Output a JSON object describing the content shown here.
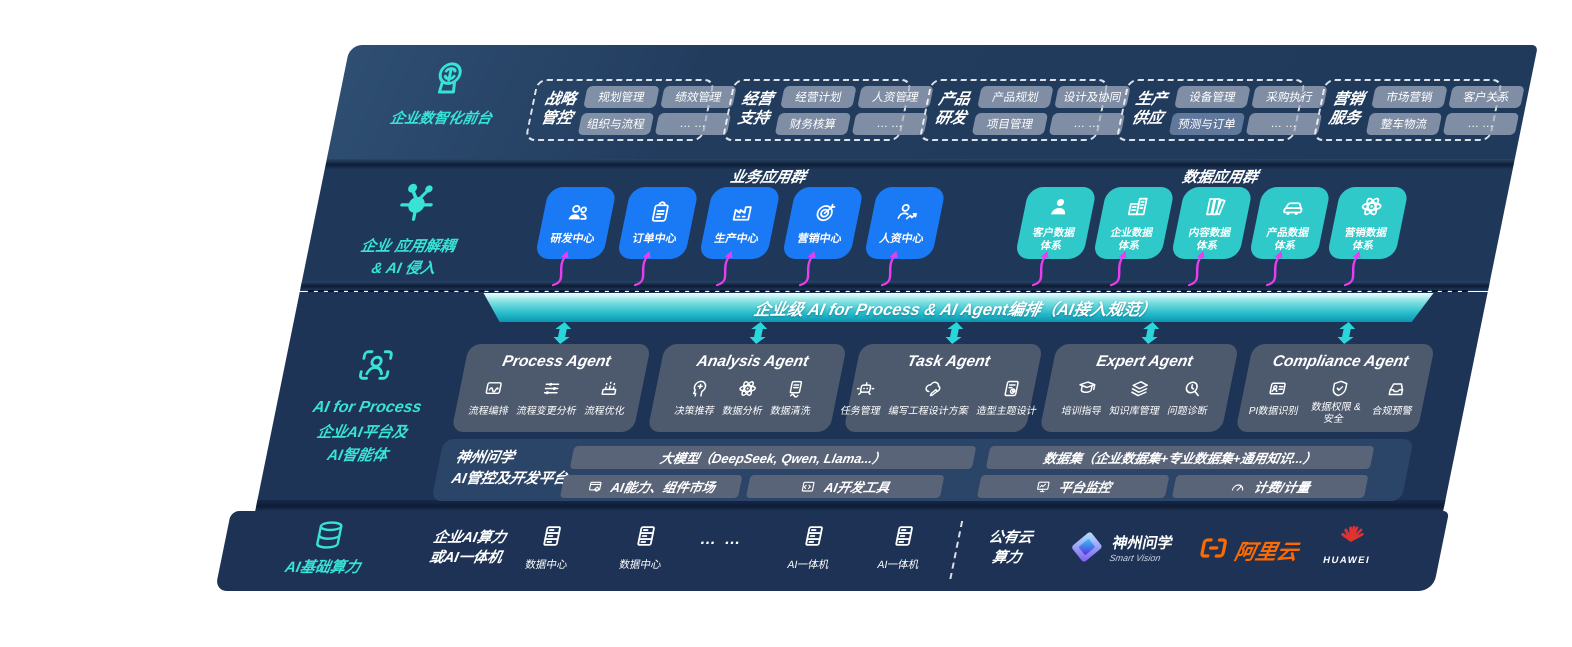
{
  "front_layer": {
    "label": "企业数智化前台",
    "icon": "brain-head-icon",
    "groups": [
      {
        "title": "战略管控",
        "chips": [
          "规划管理",
          "绩效管理",
          "组织与流程",
          "… …"
        ]
      },
      {
        "title": "经营支持",
        "chips": [
          "经营计划",
          "人资管理",
          "财务核算",
          "… …"
        ]
      },
      {
        "title": "产品研发",
        "chips": [
          "产品规划",
          "设计及协同",
          "项目管理",
          "… …"
        ]
      },
      {
        "title": "生产供应",
        "chips": [
          "设备管理",
          "采购执行",
          {
            "label": "预测与订单",
            "variant": "dark"
          },
          "… …"
        ]
      },
      {
        "title": "营销服务",
        "chips": [
          "市场营销",
          "客户关系",
          "整车物流",
          "… …"
        ]
      }
    ]
  },
  "decouple_layer": {
    "label_line1": "企业 应用解耦",
    "label_line2": "& AI 侵入",
    "icon": "molecule-icon",
    "business_group": {
      "heading": "业务应用群",
      "boxes": [
        {
          "label": "研发中心",
          "icon": "team-icon"
        },
        {
          "label": "订单中心",
          "icon": "clipboard-icon"
        },
        {
          "label": "生产中心",
          "icon": "factory-icon"
        },
        {
          "label": "营销中心",
          "icon": "target-icon"
        },
        {
          "label": "人资中心",
          "icon": "hr-icon"
        }
      ]
    },
    "data_group": {
      "heading": "数据应用群",
      "boxes": [
        {
          "label": "客户数据体系",
          "icon": "person-icon"
        },
        {
          "label": "企业数据体系",
          "icon": "building-icon"
        },
        {
          "label": "内容数据体系",
          "icon": "books-icon"
        },
        {
          "label": "产品数据体系",
          "icon": "car-icon"
        },
        {
          "label": "营销数据体系",
          "icon": "atom-icon"
        }
      ]
    }
  },
  "orchestration_bar": {
    "label": "企业级 AI for Process & AI Agent编排（AI接入规范）"
  },
  "agent_layer": {
    "label_line1": "AI for Process",
    "label_line2": "企业AI平台及",
    "label_line3": "AI智能体",
    "icon": "scan-person-icon",
    "agents": [
      {
        "title": "Process Agent",
        "items": [
          {
            "label": "流程编排",
            "icon": "workflow-icon"
          },
          {
            "label": "流程变更分析",
            "icon": "sliders-icon"
          },
          {
            "label": "流程优化",
            "icon": "optimize-icon"
          }
        ]
      },
      {
        "title": "Analysis Agent",
        "items": [
          {
            "label": "决策推荐",
            "icon": "decision-icon"
          },
          {
            "label": "数据分析",
            "icon": "atom-icon"
          },
          {
            "label": "数据清洗",
            "icon": "clean-icon"
          }
        ]
      },
      {
        "title": "Task Agent",
        "items": [
          {
            "label": "任务管理",
            "icon": "robot-icon"
          },
          {
            "label": "编写工程设计方案",
            "icon": "cloud-pen-icon"
          },
          {
            "label": "造型主题设计",
            "icon": "design-icon"
          }
        ]
      },
      {
        "title": "Expert Agent",
        "items": [
          {
            "label": "培训指导",
            "icon": "training-icon"
          },
          {
            "label": "知识库管理",
            "icon": "layers-icon"
          },
          {
            "label": "问题诊断",
            "icon": "diagnose-icon"
          }
        ]
      },
      {
        "title": "Compliance Agent",
        "items": [
          {
            "label": "PI数据识别",
            "icon": "id-card-icon"
          },
          {
            "label": "数据权限 & 安全",
            "icon": "shield-icon",
            "wrap": true
          },
          {
            "label": "合规预警",
            "icon": "alert-icon"
          }
        ]
      }
    ]
  },
  "platform": {
    "label_line1": "神州问学",
    "label_line2": "AI管控及开发平台",
    "model_bar": "大模型（DeepSeek, Qwen, Llama...）",
    "dataset_bar": "数据集（企业数据集+专业数据集+通用知识...）",
    "tools": [
      {
        "label": "AI能力、组件市场",
        "icon": "components-icon"
      },
      {
        "label": "AI开发工具",
        "icon": "devtools-icon"
      },
      {
        "label": "平台监控",
        "icon": "monitor-icon"
      },
      {
        "label": "计费/计量",
        "icon": "gauge-icon"
      }
    ]
  },
  "compute_layer": {
    "label": "AI基础算力",
    "icon": "database-icon",
    "cluster_line1": "企业AI算力",
    "cluster_line2": "或AI一体机",
    "nodes": [
      {
        "label": "数据中心",
        "icon": "server-icon"
      },
      {
        "label": "数据中心",
        "icon": "server-icon"
      },
      {
        "label": "… …",
        "icon": "dots-icon"
      },
      {
        "label": "AI一体机",
        "icon": "server-icon"
      },
      {
        "label": "AI一体机",
        "icon": "server-icon"
      }
    ],
    "public_cloud_line1": "公有云",
    "public_cloud_line2": "算力",
    "vendors": [
      {
        "name": "神州问学",
        "subtitle": "Smart Vision",
        "icon": "smartvision-logo"
      },
      {
        "name": "阿里云",
        "icon": "alibaba-cloud-logo"
      },
      {
        "name": "HUAWEI",
        "icon": "huawei-logo"
      }
    ]
  },
  "colors": {
    "accent_cyan": "#38e2d6",
    "box_blue": "#1a79f4",
    "box_teal": "#2fc9c9",
    "arrow_magenta": "#e83df0",
    "arrow_teal": "#2ad6da",
    "orchestration_teal": "#0b95b2",
    "alibaba_orange": "#ff6a00",
    "huawei_red": "#e23131",
    "navy_background": "#203a5c"
  }
}
